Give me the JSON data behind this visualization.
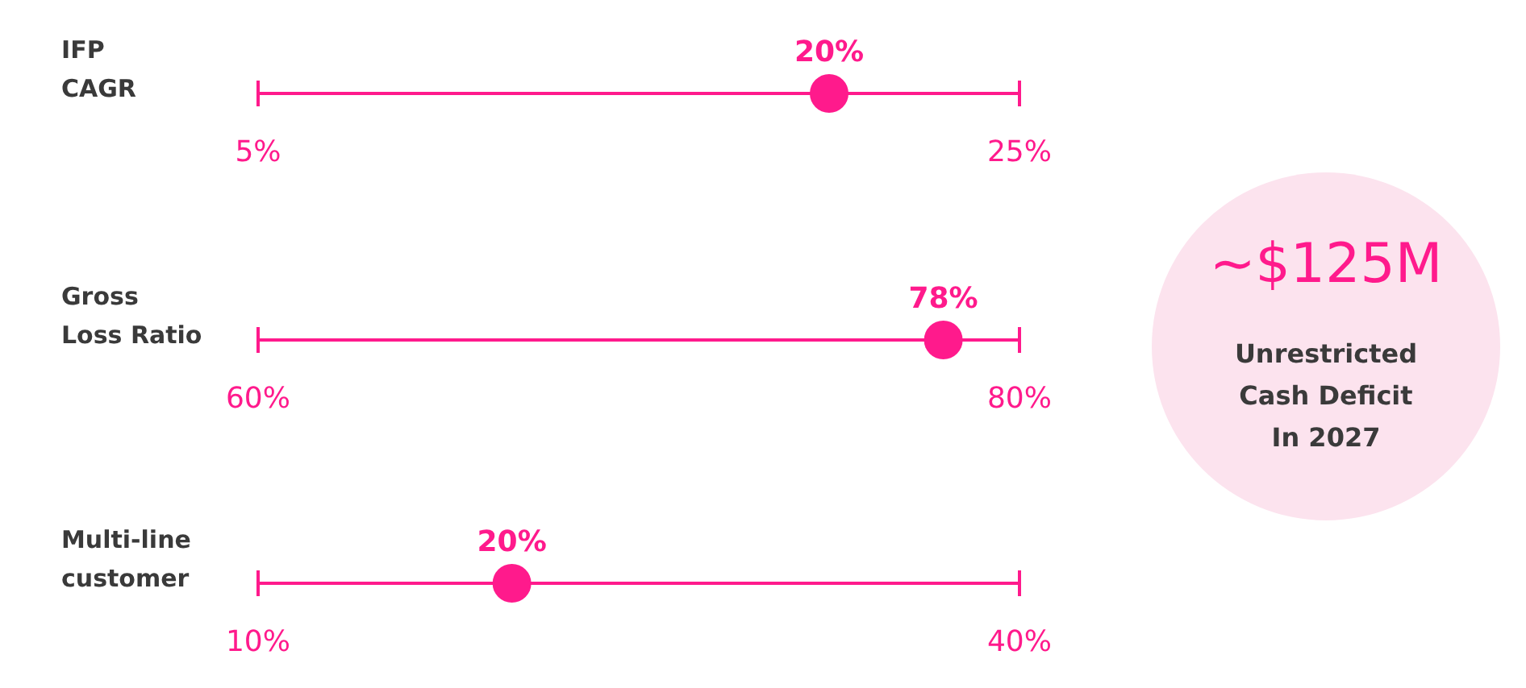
{
  "chart_data": [
    {
      "type": "scatter",
      "orientation": "horizontal",
      "categories": [
        "IFP CAGR"
      ],
      "values": [
        20
      ],
      "value_labels": [
        "20%"
      ],
      "color": "#ff1a8c",
      "marker": "circle",
      "xlim": [
        5,
        25
      ],
      "xticks": [
        {
          "value": 5,
          "label": "5%"
        },
        {
          "value": 25,
          "label": "25%"
        }
      ]
    },
    {
      "type": "scatter",
      "orientation": "horizontal",
      "categories": [
        "Gross Loss Ratio"
      ],
      "values": [
        78
      ],
      "value_labels": [
        "78%"
      ],
      "color": "#ff1a8c",
      "marker": "circle",
      "xlim": [
        60,
        80
      ],
      "xticks": [
        {
          "value": 60,
          "label": "60%"
        },
        {
          "value": 80,
          "label": "80%"
        }
      ]
    },
    {
      "type": "scatter",
      "orientation": "horizontal",
      "categories": [
        "Multi-line customer"
      ],
      "values": [
        20
      ],
      "value_labels": [
        "20%"
      ],
      "color": "#ff1a8c",
      "marker": "circle",
      "xlim": [
        10,
        40
      ],
      "xticks": [
        {
          "value": 10,
          "label": "10%"
        },
        {
          "value": 40,
          "label": "40%"
        }
      ]
    },
    {
      "type": "other",
      "title": "~$125M",
      "annotations": [
        "Unrestricted Cash Deficit In 2027"
      ]
    }
  ]
}
